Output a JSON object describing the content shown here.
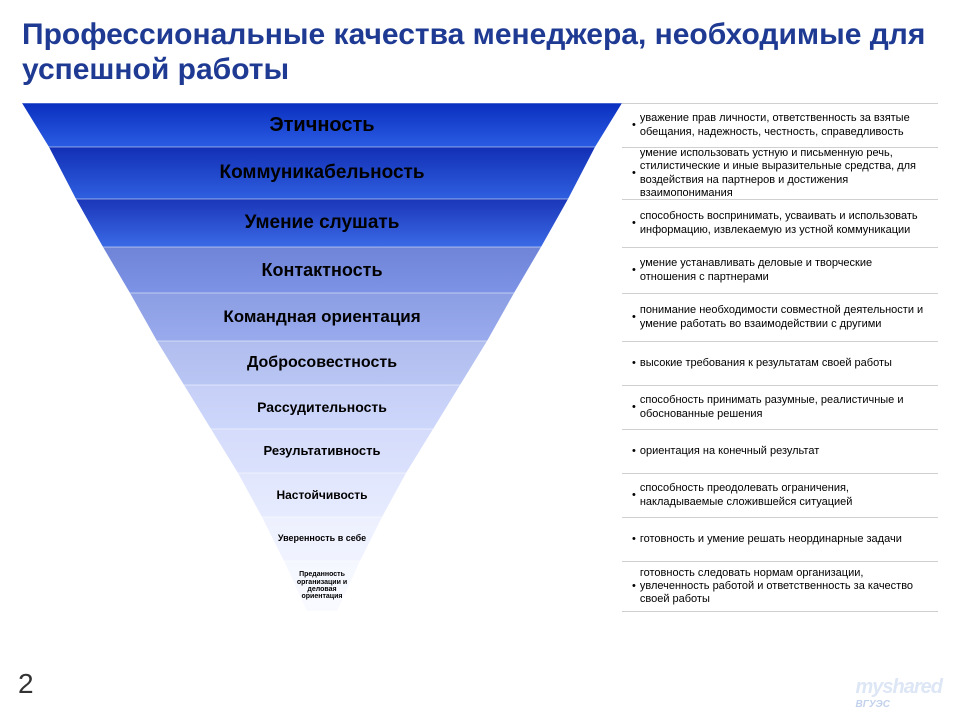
{
  "title": "Профессиональные качества менеджера, необходимые для успешной работы",
  "page_number": "2",
  "watermark": "myshared",
  "funnel": {
    "total_width": 916,
    "left_width_top": 600,
    "levels": [
      {
        "label": "Этичность",
        "description": "уважение прав личности, ответственность за взятые обещания, надежность, честность, справедливость",
        "bg_start": "#0a2fbf",
        "bg_end": "#2a5ce3",
        "text_color": "#000000",
        "font_size": 20,
        "height": 44,
        "top_width": 600,
        "bot_width": 546
      },
      {
        "label": "Коммуникабельность",
        "description": "умение использовать устную и письменную речь, стилистические и иные выразительные средства, для воздействия на партнеров и достижения взаимопонимания",
        "bg_start": "#122fb5",
        "bg_end": "#2f5fe0",
        "text_color": "#000000",
        "font_size": 19,
        "height": 52,
        "top_width": 546,
        "bot_width": 492
      },
      {
        "label": "Умение слушать",
        "description": "способность воспринимать, усваивать и использовать информацию, извлекаемую из устной коммуникации",
        "bg_start": "#1a36b8",
        "bg_end": "#3b6ae6",
        "text_color": "#000000",
        "font_size": 19,
        "height": 48,
        "top_width": 492,
        "bot_width": 438
      },
      {
        "label": "Контактность",
        "description": "умение устанавливать деловые и творческие отношения с партнерами",
        "bg_start": "#6f84d6",
        "bg_end": "#7d93e6",
        "text_color": "#000000",
        "font_size": 18,
        "height": 46,
        "top_width": 438,
        "bot_width": 384
      },
      {
        "label": "Командная ориентация",
        "description": "понимание необходимости совместной деятельности и умение работать во взаимодействии с другими",
        "bg_start": "#8c9ee3",
        "bg_end": "#99aaed",
        "text_color": "#000000",
        "font_size": 17,
        "height": 48,
        "top_width": 384,
        "bot_width": 330
      },
      {
        "label": "Добросовестность",
        "description": "высокие требования к результатам своей работы",
        "bg_start": "#b0bdee",
        "bg_end": "#b9c6f4",
        "text_color": "#000000",
        "font_size": 16,
        "height": 44,
        "top_width": 330,
        "bot_width": 276
      },
      {
        "label": "Рассудительность",
        "description": "способность принимать разумные, реалистичные и обоснованные решения",
        "bg_start": "#c6cff6",
        "bg_end": "#cdd6fb",
        "text_color": "#000000",
        "font_size": 14,
        "height": 44,
        "top_width": 276,
        "bot_width": 222
      },
      {
        "label": "Результативность",
        "description": "ориентация на конечный результат",
        "bg_start": "#d5dcfb",
        "bg_end": "#dae1fd",
        "text_color": "#000000",
        "font_size": 13,
        "height": 44,
        "top_width": 222,
        "bot_width": 168
      },
      {
        "label": "Настойчивость",
        "description": "способность преодолевать ограничения, накладываемые сложившейся ситуацией",
        "bg_start": "#e1e6fd",
        "bg_end": "#e6ebfe",
        "text_color": "#000000",
        "font_size": 12,
        "height": 44,
        "top_width": 168,
        "bot_width": 120
      },
      {
        "label": "Уверенность в себе",
        "description": "готовность и умение решать неординарные задачи",
        "bg_start": "#edf0fe",
        "bg_end": "#f0f3ff",
        "text_color": "#000000",
        "font_size": 9,
        "height": 44,
        "top_width": 120,
        "bot_width": 76
      },
      {
        "label": "Преданность организации и деловая ориентация",
        "description": "готовность следовать нормам организации, увлеченность работой и ответственность за качество своей работы",
        "bg_start": "#f5f7ff",
        "bg_end": "#f8faff",
        "text_color": "#000000",
        "font_size": 7,
        "height": 50,
        "top_width": 76,
        "bot_width": 30
      }
    ]
  }
}
